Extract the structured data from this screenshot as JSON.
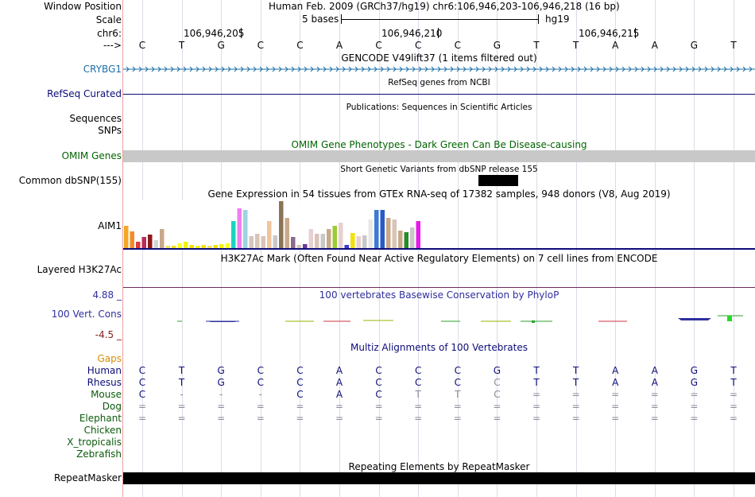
{
  "header": {
    "window_position_label": "Window Position",
    "window_position_value": "Human Feb. 2009 (GRCh37/hg19)   chr6:106,946,203-106,946,218 (16 bp)",
    "scale_label": "Scale",
    "scale_text": "5 bases",
    "scale_db": "hg19",
    "chrom_label": "chr6:",
    "strand_label": "--->",
    "positions": [
      "106,946,205",
      "106,946,210",
      "106,946,215"
    ],
    "bases": [
      "C",
      "T",
      "G",
      "C",
      "C",
      "A",
      "C",
      "C",
      "C",
      "G",
      "T",
      "T",
      "A",
      "A",
      "G",
      "T"
    ]
  },
  "tracks": {
    "gencode": {
      "title": "GENCODE V49lift37 (1 items filtered out)",
      "gene": "CRYBG1",
      "color": "#1a6ea8"
    },
    "refseq": {
      "title": "RefSeq genes from NCBI",
      "label": "RefSeq Curated",
      "color": "#0c0c78"
    },
    "publications": {
      "title": "Publications: Sequences in Scientific Articles",
      "label_sequences": "Sequences",
      "label_snps": "SNPs"
    },
    "omim": {
      "title": "OMIM Gene Phenotypes - Dark Green Can Be Disease-causing",
      "label": "OMIM Genes",
      "color": "#006400"
    },
    "dbsnp": {
      "title": "Short Genetic Variants from dbSNP release 155",
      "label": "Common dbSNP(155)"
    },
    "gtex": {
      "title": "Gene Expression in 54 tissues from GTEx RNA-seq of 17382 samples, 948 donors (V8, Aug 2019)",
      "label": "AIM1"
    },
    "h3k27ac": {
      "title": "H3K27Ac Mark (Often Found Near Active Regulatory Elements) on 7 cell lines from ENCODE",
      "label": "Layered H3K27Ac"
    },
    "phylop": {
      "title": "100 vertebrates Basewise Conservation by PhyloP",
      "label": "100 Vert. Cons",
      "max": "4.88 _",
      "min": "-4.5 _",
      "color": "#2f2f9e"
    },
    "multiz": {
      "title": "Multiz Alignments of 100 Vertebrates",
      "gaps_label": "Gaps",
      "species": [
        {
          "name": "Human",
          "row": [
            "C",
            "T",
            "G",
            "C",
            "C",
            "A",
            "C",
            "C",
            "C",
            "G",
            "T",
            "T",
            "A",
            "A",
            "G",
            "T"
          ]
        },
        {
          "name": "Rhesus",
          "row": [
            "C",
            "T",
            "G",
            "C",
            "C",
            "A",
            "C",
            "C",
            "C",
            "C",
            "T",
            "T",
            "A",
            "A",
            "G",
            "T"
          ]
        },
        {
          "name": "Mouse",
          "row": [
            "C",
            "-",
            "-",
            "-",
            "C",
            "A",
            "C",
            "T",
            "T",
            "C",
            "=",
            "=",
            "=",
            "=",
            "=",
            "="
          ]
        },
        {
          "name": "Dog",
          "row": [
            "=",
            "=",
            "=",
            "=",
            "=",
            "=",
            "=",
            "=",
            "=",
            "=",
            "=",
            "=",
            "=",
            "=",
            "=",
            "="
          ]
        },
        {
          "name": "Elephant",
          "row": [
            "=",
            "=",
            "=",
            "=",
            "=",
            "=",
            "=",
            "=",
            "=",
            "=",
            "=",
            "=",
            "=",
            "=",
            "=",
            "="
          ]
        },
        {
          "name": "Chicken",
          "row": []
        },
        {
          "name": "X_tropicalis",
          "row": []
        },
        {
          "name": "Zebrafish",
          "row": []
        }
      ]
    },
    "repeatmasker": {
      "title": "Repeating Elements by RepeatMasker",
      "label": "RepeatMasker"
    }
  },
  "colors": {
    "label_blue": "#0c0c78",
    "gaps_orange": "#d98c00",
    "species_green": "#0b5a0b",
    "pos_red": "#8b1a1a"
  }
}
